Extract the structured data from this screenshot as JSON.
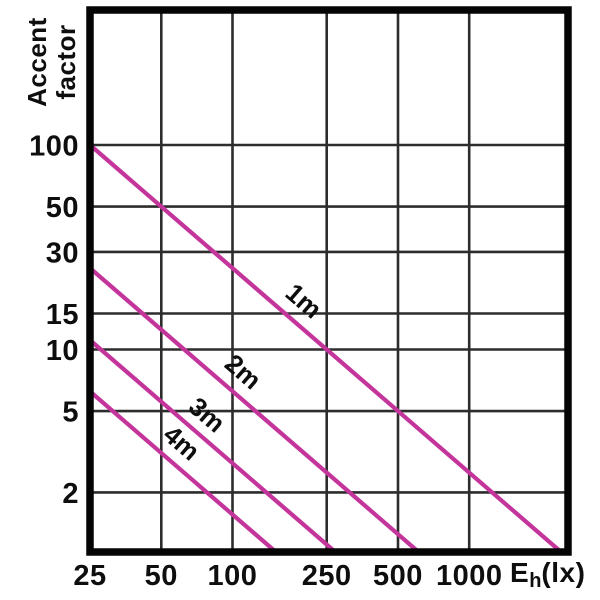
{
  "chart_data": {
    "type": "line",
    "title": "",
    "ylabel": "Accent\nfactor",
    "xlabel_base": "E",
    "xlabel_sub": "h",
    "xlabel_rest": "(lx)",
    "x_scale": "log",
    "y_scale": "log",
    "x_ticks": [
      25,
      50,
      100,
      250,
      500,
      1000
    ],
    "y_ticks": [
      2,
      5,
      10,
      15,
      30,
      50,
      100
    ],
    "x_range": [
      25,
      2600
    ],
    "y_range": [
      1,
      460
    ],
    "grid": true,
    "legend_position": "inline-labels",
    "colors": {
      "line": "#c4359c",
      "grid": "#2d2d2d",
      "border": "#050505",
      "text": "#0e0e0e"
    },
    "series": [
      {
        "label": "1m",
        "distance_m": 1,
        "relation": "accent_factor = 2500 / Eh",
        "constant": 2500,
        "endpoints": [
          [
            25,
            100
          ],
          [
            2450,
            1
          ]
        ],
        "label_pos": [
          200,
          17.3
        ]
      },
      {
        "label": "2m",
        "distance_m": 2,
        "relation": "accent_factor = 625 / Eh",
        "constant": 625,
        "endpoints": [
          [
            25,
            25
          ],
          [
            613,
            1
          ]
        ],
        "label_pos": [
          111,
          7.8
        ]
      },
      {
        "label": "3m",
        "distance_m": 3,
        "relation": "accent_factor = 278 / Eh",
        "constant": 278,
        "endpoints": [
          [
            25,
            11.1
          ],
          [
            272,
            1
          ]
        ],
        "label_pos": [
          78,
          4.8
        ]
      },
      {
        "label": "4m",
        "distance_m": 4,
        "relation": "accent_factor = 156 / Eh",
        "constant": 156,
        "endpoints": [
          [
            25,
            6.25
          ],
          [
            153,
            1
          ]
        ],
        "label_pos": [
          61,
          3.5
        ]
      }
    ]
  }
}
